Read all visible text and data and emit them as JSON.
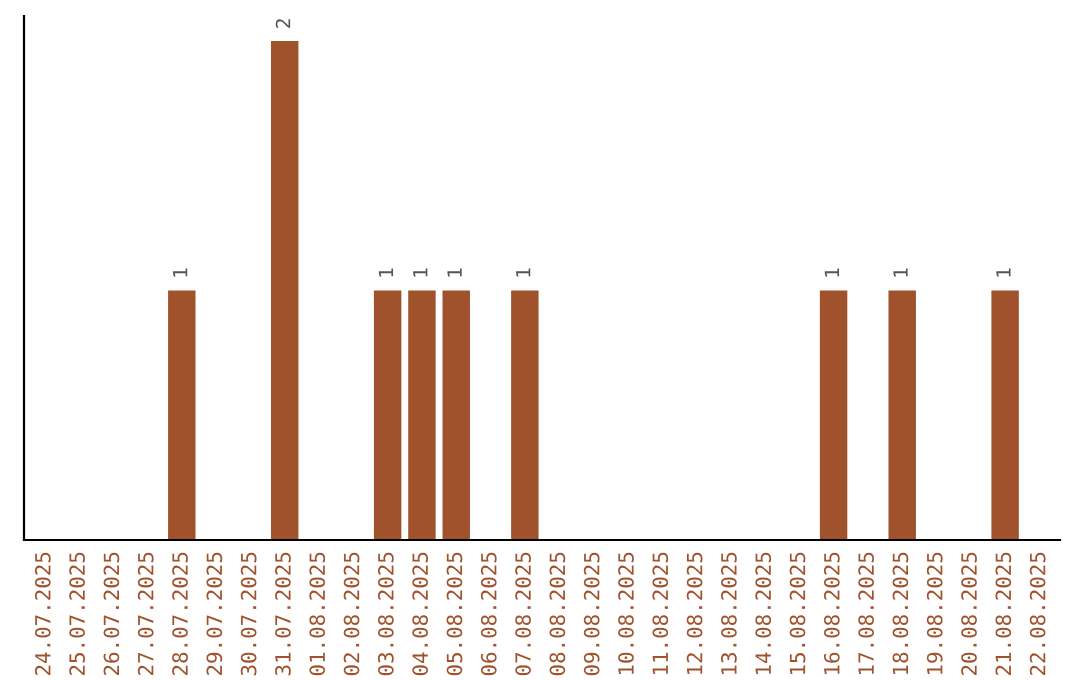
{
  "chart_data": {
    "type": "bar",
    "categories": [
      "24.07.2025",
      "25.07.2025",
      "26.07.2025",
      "27.07.2025",
      "28.07.2025",
      "29.07.2025",
      "30.07.2025",
      "31.07.2025",
      "01.08.2025",
      "02.08.2025",
      "03.08.2025",
      "04.08.2025",
      "05.08.2025",
      "06.08.2025",
      "07.08.2025",
      "08.08.2025",
      "09.08.2025",
      "10.08.2025",
      "11.08.2025",
      "12.08.2025",
      "13.08.2025",
      "14.08.2025",
      "15.08.2025",
      "16.08.2025",
      "17.08.2025",
      "18.08.2025",
      "19.08.2025",
      "20.08.2025",
      "21.08.2025",
      "22.08.2025"
    ],
    "values": [
      null,
      null,
      null,
      null,
      1,
      null,
      null,
      2,
      null,
      null,
      1,
      1,
      1,
      null,
      1,
      null,
      null,
      null,
      null,
      null,
      null,
      null,
      null,
      1,
      null,
      1,
      null,
      null,
      1,
      null
    ],
    "color": "#a0522d",
    "ylim": [
      0,
      2.1
    ],
    "tick_labels": "x",
    "data_labels": true,
    "grid": false,
    "legend": false
  }
}
